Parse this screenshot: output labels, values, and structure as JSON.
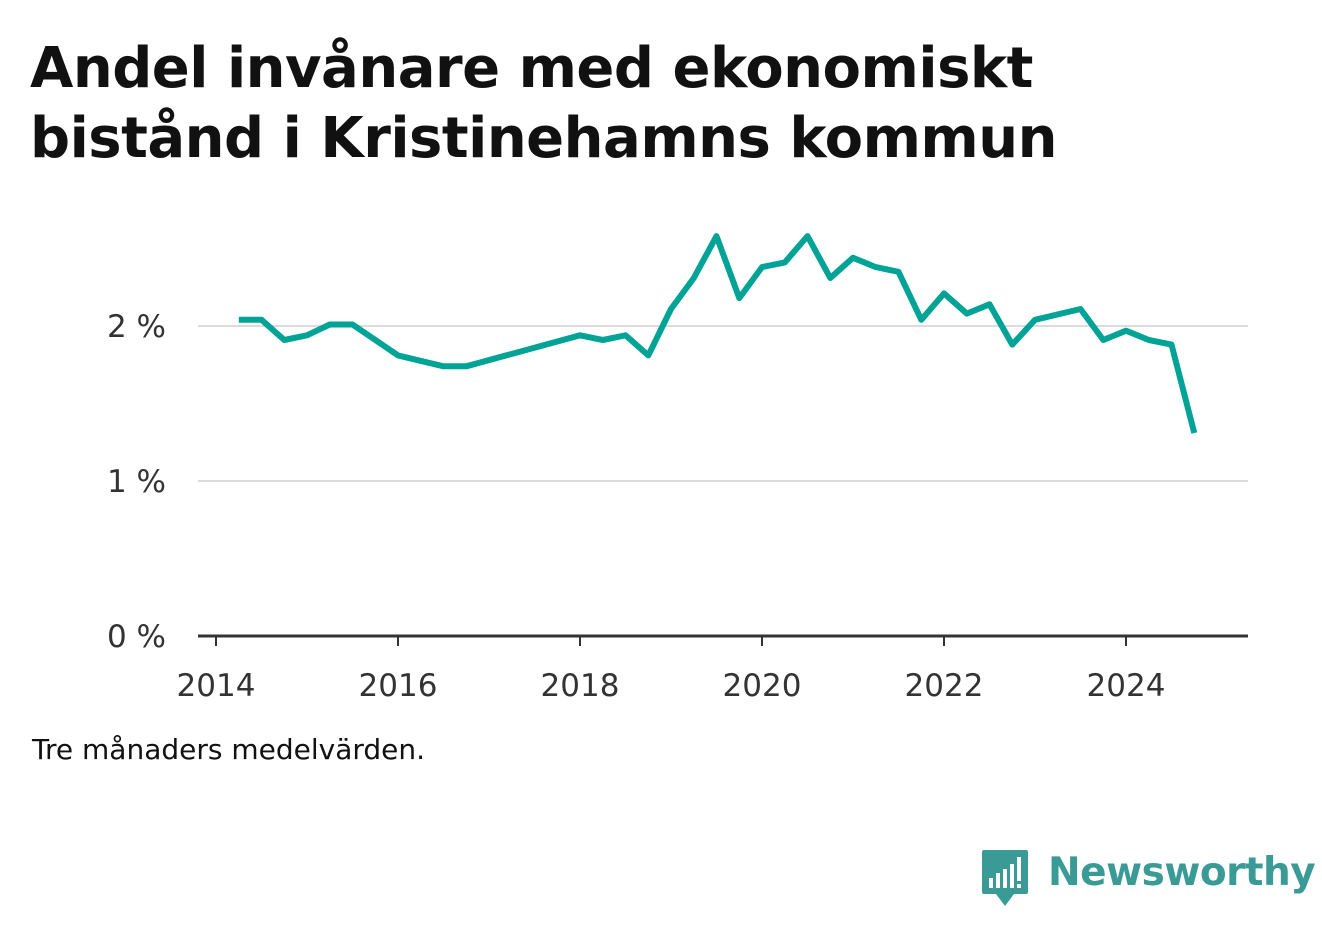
{
  "title_lines": [
    "Andel invånare med ekonomiskt",
    "bistånd i Kristinehamns kommun"
  ],
  "note": "Tre månaders medelvärden.",
  "brand": {
    "name": "Newsworthy",
    "icon": "newsworthy-logo-icon"
  },
  "colors": {
    "line": "#00a396",
    "grid": "#dcdcdc",
    "axis": "#333333",
    "brand": "#3a9b96"
  },
  "chart_data": {
    "type": "line",
    "title": "Andel invånare med ekonomiskt bistånd i Kristinehamns kommun",
    "xlabel": "",
    "ylabel": "",
    "x_ticks": [
      "2014",
      "2016",
      "2018",
      "2020",
      "2022",
      "2024"
    ],
    "y_ticks": [
      {
        "value": 0,
        "label": "0 %"
      },
      {
        "value": 1,
        "label": "1 %"
      },
      {
        "value": 2,
        "label": "2 %"
      }
    ],
    "xlim": [
      2014.0,
      2025.5
    ],
    "ylim": [
      0,
      2.6
    ],
    "grid": true,
    "legend": "none",
    "series": [
      {
        "points": [
          {
            "x": "2014-04",
            "y": 2.04
          },
          {
            "x": "2014-07",
            "y": 2.04
          },
          {
            "x": "2014-10",
            "y": 1.91
          },
          {
            "x": "2015-01",
            "y": 1.94
          },
          {
            "x": "2015-04",
            "y": 2.01
          },
          {
            "x": "2015-07",
            "y": 2.01
          },
          {
            "x": "2016-01",
            "y": 1.81
          },
          {
            "x": "2016-07",
            "y": 1.74
          },
          {
            "x": "2016-10",
            "y": 1.74
          },
          {
            "x": "2018-01",
            "y": 1.94
          },
          {
            "x": "2018-04",
            "y": 1.91
          },
          {
            "x": "2018-07",
            "y": 1.94
          },
          {
            "x": "2018-10",
            "y": 1.81
          },
          {
            "x": "2019-01",
            "y": 2.11
          },
          {
            "x": "2019-04",
            "y": 2.31
          },
          {
            "x": "2019-07",
            "y": 2.58
          },
          {
            "x": "2019-10",
            "y": 2.18
          },
          {
            "x": "2020-01",
            "y": 2.38
          },
          {
            "x": "2020-04",
            "y": 2.41
          },
          {
            "x": "2020-07",
            "y": 2.58
          },
          {
            "x": "2020-10",
            "y": 2.31
          },
          {
            "x": "2021-01",
            "y": 2.44
          },
          {
            "x": "2021-04",
            "y": 2.38
          },
          {
            "x": "2021-07",
            "y": 2.35
          },
          {
            "x": "2021-10",
            "y": 2.04
          },
          {
            "x": "2022-01",
            "y": 2.21
          },
          {
            "x": "2022-04",
            "y": 2.08
          },
          {
            "x": "2022-07",
            "y": 2.14
          },
          {
            "x": "2022-10",
            "y": 1.88
          },
          {
            "x": "2023-01",
            "y": 2.04
          },
          {
            "x": "2023-07",
            "y": 2.11
          },
          {
            "x": "2023-10",
            "y": 1.91
          },
          {
            "x": "2024-01",
            "y": 1.97
          },
          {
            "x": "2024-04",
            "y": 1.91
          },
          {
            "x": "2024-07",
            "y": 1.88
          },
          {
            "x": "2024-10",
            "y": 1.31
          }
        ]
      }
    ]
  }
}
